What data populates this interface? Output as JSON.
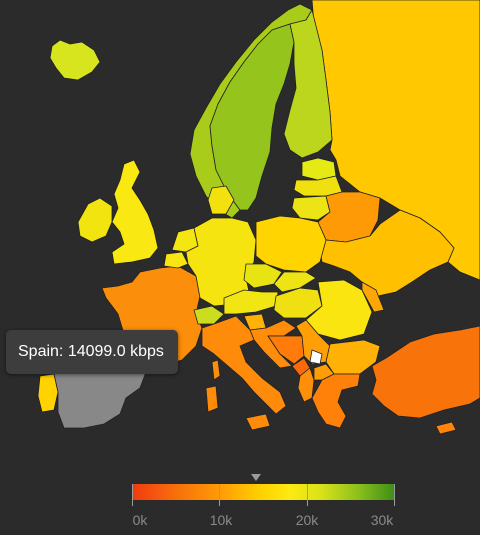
{
  "tooltip": {
    "text": "Spain: 14099.0 kbps"
  },
  "legend": {
    "min": 0,
    "max": 30000,
    "labels": [
      "0k",
      "10k",
      "20k",
      "30k"
    ],
    "marker_value": 14099.0
  },
  "regions": [
    {
      "name": "Russia",
      "color": "#ffc800"
    },
    {
      "name": "Iceland",
      "color": "#d7e51f"
    },
    {
      "name": "Norway",
      "color": "#a9cc1b"
    },
    {
      "name": "Sweden",
      "color": "#95c41c"
    },
    {
      "name": "Finland",
      "color": "#bcd51d"
    },
    {
      "name": "Estonia",
      "color": "#e5ea15"
    },
    {
      "name": "Latvia",
      "color": "#f0e010"
    },
    {
      "name": "Lithuania",
      "color": "#ece414"
    },
    {
      "name": "Belarus",
      "color": "#ff9a07"
    },
    {
      "name": "Ukraine",
      "color": "#ffc000"
    },
    {
      "name": "United Kingdom",
      "color": "#f9e812"
    },
    {
      "name": "Ireland",
      "color": "#f2e40f"
    },
    {
      "name": "France",
      "color": "#fb8e0a"
    },
    {
      "name": "Spain",
      "color": "#888888"
    },
    {
      "name": "Portugal",
      "color": "#ffd200"
    },
    {
      "name": "Belgium",
      "color": "#f8e513"
    },
    {
      "name": "Netherlands",
      "color": "#f4e611"
    },
    {
      "name": "Germany",
      "color": "#f6e411"
    },
    {
      "name": "Denmark",
      "color": "#f2e10f"
    },
    {
      "name": "Switzerland",
      "color": "#ccdd1f"
    },
    {
      "name": "Austria",
      "color": "#f1e614"
    },
    {
      "name": "Italy",
      "color": "#ff8b0a"
    },
    {
      "name": "Poland",
      "color": "#ffd400"
    },
    {
      "name": "Czech Republic",
      "color": "#e8e414"
    },
    {
      "name": "Slovakia",
      "color": "#eee313"
    },
    {
      "name": "Hungary",
      "color": "#f0e012"
    },
    {
      "name": "Romania",
      "color": "#fbe510"
    },
    {
      "name": "Moldova",
      "color": "#ffa607"
    },
    {
      "name": "Bulgaria",
      "color": "#ffb106"
    },
    {
      "name": "Serbia",
      "color": "#ff9f07"
    },
    {
      "name": "Croatia",
      "color": "#ff8c0a"
    },
    {
      "name": "Bosnia and Herzegovina",
      "color": "#ff7c0b"
    },
    {
      "name": "Slovenia",
      "color": "#ffb205"
    },
    {
      "name": "Montenegro",
      "color": "#fa6a0c"
    },
    {
      "name": "Albania",
      "color": "#ff8f09"
    },
    {
      "name": "Macedonia",
      "color": "#ff9d07"
    },
    {
      "name": "Kosovo",
      "color": "#ffffff"
    },
    {
      "name": "Greece",
      "color": "#ff8109"
    },
    {
      "name": "Turkey",
      "color": "#f8740b"
    },
    {
      "name": "Cyprus",
      "color": "#ff8409"
    },
    {
      "name": "Corsica",
      "color": "#fb8e0a"
    },
    {
      "name": "Sardinia",
      "color": "#ff8b0a"
    },
    {
      "name": "Sicily",
      "color": "#ff8b0a"
    }
  ]
}
